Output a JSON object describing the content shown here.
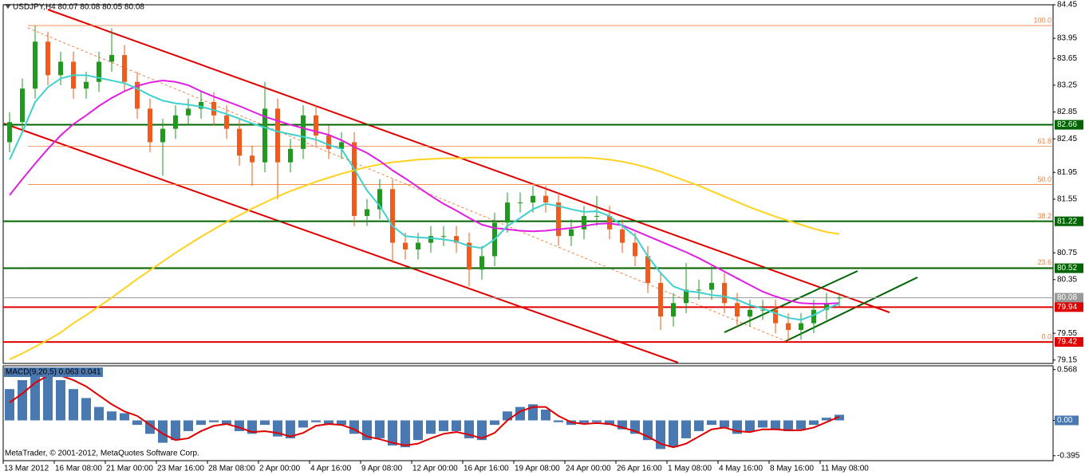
{
  "chart_data": [
    {
      "type": "candlestick",
      "title": "USDJPY,H4 80.07 80.08 80.05 80.08",
      "watermark": "MetaTrader, © 2001-2012, MetaQuotes Software Corp.",
      "categories": [
        "13 Mar 2012",
        null,
        null,
        null,
        "16 Mar 08:00",
        null,
        null,
        null,
        "21 Mar 00:00",
        null,
        null,
        null,
        "23 Mar 16:00",
        null,
        null,
        null,
        "28 Mar 08:00",
        null,
        null,
        null,
        "2 Apr 00:00",
        null,
        null,
        null,
        "4 Apr 16:00",
        null,
        null,
        null,
        "9 Apr 08:00",
        null,
        null,
        null,
        "12 Apr 00:00",
        null,
        null,
        null,
        "16 Apr 16:00",
        null,
        null,
        null,
        "19 Apr 08:00",
        null,
        null,
        null,
        "24 Apr 00:00",
        null,
        null,
        null,
        "26 Apr 16:00",
        null,
        null,
        null,
        "1 May 08:00",
        null,
        null,
        null,
        "4 May 16:00",
        null,
        null,
        null,
        "8 May 16:00",
        null,
        null,
        null,
        "11 May 08:00",
        null
      ],
      "open": [
        82.4,
        82.7,
        83.2,
        83.9,
        83.4,
        83.6,
        83.2,
        83.3,
        83.6,
        83.7,
        83.3,
        82.9,
        82.4,
        82.6,
        82.8,
        82.9,
        83.0,
        82.8,
        82.6,
        82.2,
        82.1,
        82.9,
        82.1,
        82.3,
        82.8,
        82.5,
        82.3,
        82.4,
        81.3,
        81.4,
        81.7,
        80.9,
        80.8,
        80.9,
        81.0,
        81.0,
        80.9,
        80.5,
        80.7,
        81.2,
        81.5,
        81.5,
        81.6,
        81.5,
        81.0,
        81.1,
        81.3,
        81.3,
        81.1,
        80.9,
        80.7,
        80.3,
        79.8,
        80.0,
        80.2,
        80.2,
        80.3,
        80.0,
        79.8,
        79.9,
        79.9,
        79.7,
        79.6,
        79.7,
        79.9,
        80.07
      ],
      "high": [
        82.85,
        83.35,
        84.14,
        84.05,
        83.75,
        83.75,
        83.45,
        83.75,
        84.1,
        83.85,
        83.45,
        83.05,
        82.75,
        82.95,
        83.05,
        83.15,
        83.15,
        82.95,
        82.75,
        82.35,
        83.3,
        83.05,
        82.45,
        82.95,
        82.95,
        82.65,
        82.55,
        82.55,
        81.55,
        81.85,
        81.85,
        81.05,
        81.05,
        81.15,
        81.15,
        81.15,
        81.05,
        80.85,
        81.35,
        81.65,
        81.65,
        81.75,
        81.75,
        81.65,
        81.25,
        81.45,
        81.6,
        81.45,
        81.25,
        81.05,
        80.85,
        80.45,
        80.15,
        80.6,
        80.35,
        80.55,
        80.45,
        80.15,
        80.05,
        80.05,
        80.05,
        79.85,
        79.85,
        80.05,
        80.15,
        80.15
      ],
      "low": [
        82.25,
        82.55,
        83.05,
        83.25,
        83.25,
        83.05,
        83.05,
        83.15,
        83.45,
        83.15,
        82.75,
        82.25,
        81.9,
        82.45,
        82.65,
        82.75,
        82.65,
        82.45,
        82.05,
        81.75,
        81.95,
        81.55,
        81.95,
        82.15,
        82.35,
        82.15,
        82.15,
        81.15,
        81.15,
        81.25,
        80.6,
        80.65,
        80.65,
        80.75,
        80.85,
        80.75,
        80.25,
        80.35,
        80.55,
        81.05,
        81.35,
        81.35,
        81.35,
        80.85,
        80.85,
        80.95,
        81.15,
        80.95,
        80.75,
        80.55,
        80.15,
        79.6,
        79.65,
        79.85,
        80.05,
        80.05,
        79.85,
        79.65,
        79.65,
        79.75,
        79.55,
        79.42,
        79.45,
        79.55,
        79.75,
        79.95
      ],
      "close": [
        82.7,
        83.2,
        83.9,
        83.4,
        83.6,
        83.2,
        83.3,
        83.6,
        83.7,
        83.3,
        82.9,
        82.4,
        82.6,
        82.8,
        82.9,
        83.0,
        82.8,
        82.6,
        82.2,
        82.1,
        82.9,
        82.1,
        82.3,
        82.8,
        82.5,
        82.3,
        82.4,
        81.3,
        81.4,
        81.7,
        80.9,
        80.8,
        80.9,
        81.0,
        81.0,
        80.9,
        80.5,
        80.7,
        81.2,
        81.5,
        81.5,
        81.6,
        81.5,
        81.0,
        81.1,
        81.3,
        81.3,
        81.1,
        80.9,
        80.7,
        80.3,
        79.8,
        80.0,
        80.2,
        80.2,
        80.3,
        80.0,
        79.8,
        79.9,
        79.9,
        79.7,
        79.6,
        79.7,
        79.9,
        80.0,
        80.08
      ],
      "up_color": "#1f9a1f",
      "down_color": "#f05a1a",
      "moving_averages": [
        {
          "color": "#ffd21f",
          "values": [
            79.16,
            79.25,
            79.35,
            79.45,
            79.56,
            79.7,
            79.82,
            79.95,
            80.08,
            80.22,
            80.36,
            80.49,
            80.62,
            80.75,
            80.87,
            80.99,
            81.1,
            81.21,
            81.31,
            81.41,
            81.5,
            81.59,
            81.67,
            81.74,
            81.81,
            81.87,
            81.93,
            81.98,
            82.03,
            82.07,
            82.1,
            82.12,
            82.14,
            82.15,
            82.16,
            82.16,
            82.17,
            82.17,
            82.17,
            82.17,
            82.17,
            82.17,
            82.17,
            82.17,
            82.17,
            82.17,
            82.16,
            82.14,
            82.11,
            82.07,
            82.02,
            81.96,
            81.89,
            81.82,
            81.75,
            81.67,
            81.59,
            81.51,
            81.43,
            81.36,
            81.29,
            81.23,
            81.17,
            81.11,
            81.06,
            81.03
          ]
        },
        {
          "color": "#e020e0",
          "values": [
            81.61,
            81.85,
            82.08,
            82.3,
            82.5,
            82.67,
            82.8,
            82.94,
            83.06,
            83.16,
            83.24,
            83.29,
            83.32,
            83.3,
            83.25,
            83.16,
            83.08,
            83.01,
            82.94,
            82.86,
            82.78,
            82.72,
            82.66,
            82.61,
            82.56,
            82.51,
            82.43,
            82.33,
            82.24,
            82.12,
            81.98,
            81.86,
            81.73,
            81.6,
            81.48,
            81.38,
            81.27,
            81.17,
            81.12,
            81.1,
            81.08,
            81.07,
            81.08,
            81.1,
            81.12,
            81.15,
            81.18,
            81.19,
            81.16,
            81.08,
            81.0,
            80.92,
            80.84,
            80.76,
            80.67,
            80.57,
            80.47,
            80.37,
            80.27,
            80.17,
            80.1,
            80.04,
            80.0,
            79.99,
            79.99,
            80.0
          ]
        },
        {
          "color": "#40d0d0",
          "values": [
            82.14,
            82.55,
            83.0,
            83.22,
            83.35,
            83.4,
            83.4,
            83.36,
            83.32,
            83.28,
            83.2,
            83.1,
            83.02,
            82.98,
            82.96,
            82.93,
            82.88,
            82.82,
            82.75,
            82.68,
            82.62,
            82.56,
            82.52,
            82.48,
            82.44,
            82.36,
            82.3,
            82.0,
            81.68,
            81.45,
            81.15,
            81.0,
            80.98,
            80.97,
            80.95,
            80.92,
            80.85,
            80.82,
            80.95,
            81.15,
            81.27,
            81.4,
            81.48,
            81.45,
            81.4,
            81.36,
            81.37,
            81.3,
            81.15,
            81.0,
            80.7,
            80.45,
            80.25,
            80.18,
            80.16,
            80.12,
            80.1,
            80.05,
            79.97,
            79.92,
            79.85,
            79.78,
            79.75,
            79.82,
            79.92,
            79.99
          ]
        }
      ],
      "ylim": [
        79.1,
        84.45
      ],
      "yticks": [
        84.45,
        83.95,
        83.65,
        83.25,
        82.85,
        82.45,
        81.95,
        81.55,
        80.75,
        80.35,
        79.55,
        79.15
      ],
      "levels": [
        {
          "value": 82.66,
          "color": "#006400"
        },
        {
          "value": 81.22,
          "color": "#006400"
        },
        {
          "value": 80.52,
          "color": "#006400"
        },
        {
          "value": 80.08,
          "color": "#9a9a9a"
        },
        {
          "value": 79.94,
          "color": "#e00000"
        },
        {
          "value": 79.42,
          "color": "#e00000"
        }
      ],
      "fibonacci": {
        "color": "#f08040",
        "levels": [
          {
            "value": 84.14,
            "label": "100.0"
          },
          {
            "value": 82.34,
            "label": "61.8"
          },
          {
            "value": 81.77,
            "label": "50.0"
          },
          {
            "value": 81.22,
            "label": "38.2"
          },
          {
            "value": 80.53,
            "label": "23.6"
          },
          {
            "value": 79.42,
            "label": "0.0"
          }
        ]
      }
    },
    {
      "type": "bar",
      "title": "MACD(9,20,5) 0.063 0.041",
      "color": "#4a78b0",
      "values": [
        0.35,
        0.45,
        0.55,
        0.55,
        0.45,
        0.35,
        0.25,
        0.15,
        0.1,
        0.08,
        -0.05,
        -0.15,
        -0.25,
        -0.22,
        -0.12,
        -0.05,
        -0.02,
        -0.05,
        -0.12,
        -0.15,
        -0.05,
        -0.18,
        -0.2,
        -0.08,
        -0.02,
        -0.05,
        -0.05,
        -0.15,
        -0.22,
        -0.2,
        -0.28,
        -0.3,
        -0.22,
        -0.15,
        -0.12,
        -0.12,
        -0.2,
        -0.22,
        -0.05,
        0.1,
        0.15,
        0.18,
        0.12,
        -0.02,
        -0.05,
        -0.03,
        -0.02,
        -0.05,
        -0.1,
        -0.15,
        -0.22,
        -0.32,
        -0.3,
        -0.2,
        -0.12,
        -0.05,
        -0.08,
        -0.15,
        -0.12,
        -0.08,
        -0.1,
        -0.12,
        -0.1,
        -0.05,
        0.03,
        0.063
      ],
      "signal": {
        "color": "#e00000",
        "values": [
          0.2,
          0.3,
          0.42,
          0.5,
          0.5,
          0.45,
          0.38,
          0.28,
          0.18,
          0.1,
          0.05,
          -0.05,
          -0.15,
          -0.22,
          -0.2,
          -0.12,
          -0.06,
          -0.04,
          -0.08,
          -0.13,
          -0.12,
          -0.14,
          -0.18,
          -0.14,
          -0.06,
          -0.04,
          -0.05,
          -0.1,
          -0.18,
          -0.21,
          -0.25,
          -0.28,
          -0.26,
          -0.2,
          -0.15,
          -0.13,
          -0.16,
          -0.2,
          -0.14,
          0.0,
          0.1,
          0.15,
          0.15,
          0.05,
          -0.02,
          -0.04,
          -0.03,
          -0.04,
          -0.08,
          -0.12,
          -0.18,
          -0.26,
          -0.3,
          -0.26,
          -0.18,
          -0.1,
          -0.08,
          -0.12,
          -0.13,
          -0.1,
          -0.1,
          -0.11,
          -0.11,
          -0.08,
          -0.02,
          0.041
        ]
      },
      "ylim": [
        -0.45,
        0.61
      ],
      "yticks": [
        0.568,
        {
          "value": 0,
          "label": "0.00"
        },
        -0.395
      ]
    }
  ]
}
